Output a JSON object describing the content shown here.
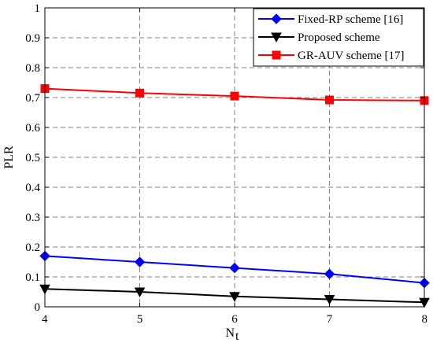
{
  "chart_data": {
    "type": "line",
    "x": [
      4,
      5,
      6,
      7,
      8
    ],
    "xlim": [
      4,
      8
    ],
    "ylim": [
      0,
      1
    ],
    "xticks": [
      "4",
      "5",
      "6",
      "7",
      "8"
    ],
    "yticks": [
      "0",
      "0.1",
      "0.2",
      "0.3",
      "0.4",
      "0.5",
      "0.6",
      "0.7",
      "0.8",
      "0.9",
      "1"
    ],
    "xlabel": "N",
    "xlabel_sub": "t",
    "ylabel": "PLR",
    "grid": true,
    "legend_position": "top-right",
    "series": [
      {
        "name": "Fixed-RP scheme [16]",
        "values": [
          0.17,
          0.15,
          0.13,
          0.11,
          0.08
        ],
        "color": "#0000ff",
        "marker": "diamond"
      },
      {
        "name": "Proposed scheme",
        "values": [
          0.06,
          0.05,
          0.035,
          0.025,
          0.015
        ],
        "color": "#000000",
        "marker": "triangle-down"
      },
      {
        "name": "GR-AUV scheme [17]",
        "values": [
          0.73,
          0.715,
          0.705,
          0.692,
          0.69
        ],
        "color": "#ff0000",
        "marker": "square"
      }
    ]
  }
}
